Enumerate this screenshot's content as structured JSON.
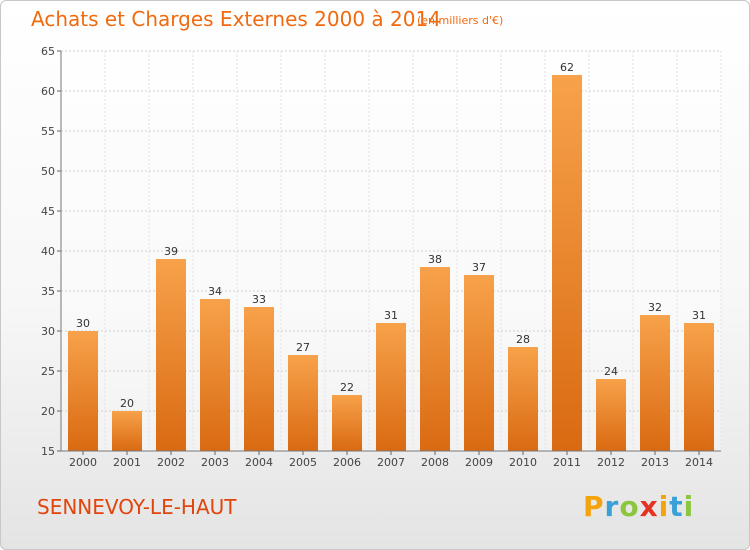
{
  "chart_data": {
    "type": "bar",
    "title": "Achats et Charges Externes 2000 à 2014",
    "subtitle": "(en milliers d'€)",
    "categories": [
      "2000",
      "2001",
      "2002",
      "2003",
      "2004",
      "2005",
      "2006",
      "2007",
      "2008",
      "2009",
      "2010",
      "2011",
      "2012",
      "2013",
      "2014"
    ],
    "values": [
      30,
      20,
      39,
      34,
      33,
      27,
      22,
      31,
      38,
      37,
      28,
      62,
      24,
      32,
      31
    ],
    "ylim": [
      15,
      65
    ],
    "yticks": [
      15,
      20,
      25,
      30,
      35,
      40,
      45,
      50,
      55,
      60,
      65
    ],
    "xlabel": "",
    "ylabel": "",
    "grid": true,
    "bar_color_light": "#f7a24a",
    "bar_color_dark": "#d96a12"
  },
  "commune": "SENNEVOY-LE-HAUT",
  "brand": {
    "letters": [
      "P",
      "r",
      "o",
      "x",
      "i",
      "t",
      "i"
    ],
    "colors": [
      "#f5a30a",
      "#3aa0d8",
      "#8cc63f",
      "#e53222",
      "#f5a30a",
      "#3aa0d8",
      "#8cc63f"
    ]
  }
}
